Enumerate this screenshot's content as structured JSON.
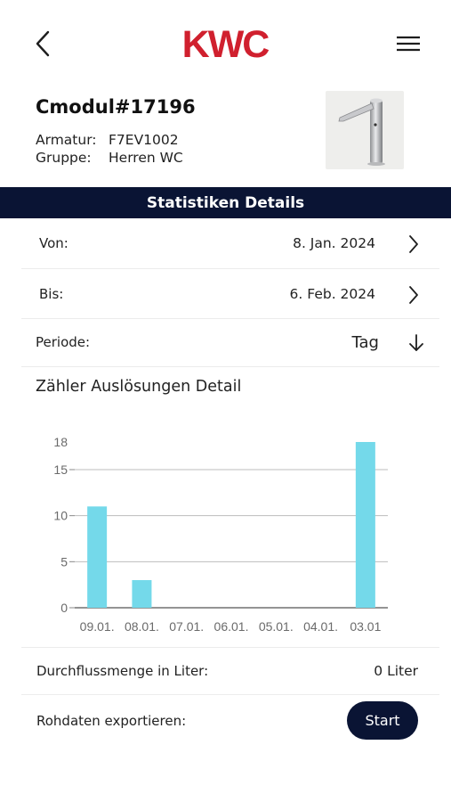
{
  "header": {
    "logo_text": "KWC",
    "brand_color": "#d0202e",
    "back_icon": "chevron-left-icon",
    "menu_icon": "hamburger-menu-icon"
  },
  "device": {
    "title": "Cmodul#17196",
    "armatur_label": "Armatur:",
    "armatur_value": "F7EV1002",
    "gruppe_label": "Gruppe:",
    "gruppe_value": "Herren WC",
    "thumbnail": "faucet-image"
  },
  "section": {
    "title": "Statistiken Details",
    "color": "#0a1434"
  },
  "filters": {
    "von_label": "Von:",
    "von_value": "8. Jan. 2024",
    "bis_label": "Bis:",
    "bis_value": "6. Feb. 2024",
    "periode_label": "Periode:",
    "periode_value": "Tag"
  },
  "chart_data": {
    "type": "bar",
    "title": "Zähler Auslösungen Detail",
    "categories": [
      "09.01.",
      "08.01.",
      "07.01.",
      "06.01.",
      "05.01.",
      "04.01.",
      "03.01"
    ],
    "values": [
      11,
      3,
      0,
      0,
      0,
      0,
      18
    ],
    "yticks": [
      0,
      5,
      10,
      15,
      18
    ],
    "ylim": [
      0,
      18
    ],
    "grid": true,
    "bar_color": "#74d9ea",
    "grid_color": "#bdbdbd"
  },
  "flow": {
    "label": "Durchflussmenge in Liter:",
    "value": "0 Liter"
  },
  "export": {
    "label": "Rohdaten exportieren:",
    "button_label": "Start"
  }
}
